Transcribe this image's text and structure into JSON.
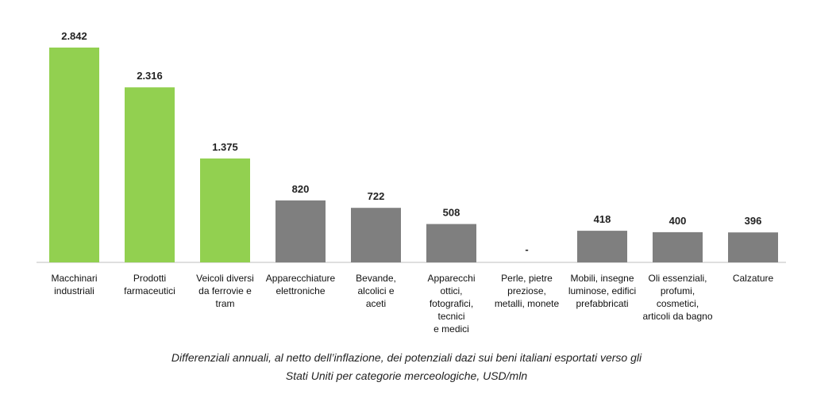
{
  "chart_data": {
    "type": "bar",
    "categories": [
      [
        "Macchinari",
        "industriali"
      ],
      [
        "Prodotti",
        "farmaceutici"
      ],
      [
        "Veicoli diversi",
        "da ferrovie e",
        "tram"
      ],
      [
        "Apparecchiature",
        "elettroniche"
      ],
      [
        "Bevande,",
        "alcolici e",
        "aceti"
      ],
      [
        "Apparecchi",
        "ottici,",
        "fotografici,",
        "tecnici",
        "e medici"
      ],
      [
        "Perle, pietre",
        "preziose,",
        "metalli, monete"
      ],
      [
        "Mobili, insegne",
        "luminose, edifici",
        "prefabbricati"
      ],
      [
        "Oli essenziali,",
        "profumi,",
        "cosmetici,",
        "articoli da bagno"
      ],
      [
        "Calzature"
      ]
    ],
    "values": [
      2842,
      2316,
      1375,
      820,
      722,
      508,
      0,
      418,
      400,
      396
    ],
    "value_labels": [
      "2.842",
      "2.316",
      "1.375",
      "820",
      "722",
      "508",
      "-",
      "418",
      "400",
      "396"
    ],
    "highlight": [
      true,
      true,
      true,
      false,
      false,
      false,
      false,
      false,
      false,
      false
    ],
    "colors": {
      "highlight": "#92d050",
      "default": "#7f7f7f",
      "axis": "#bfbfbf"
    },
    "ylim": [
      0,
      2842
    ],
    "grid": false,
    "legend": "none"
  },
  "caption": {
    "line1": "Differenziali annuali, al netto dell’inflazione, dei potenziali dazi sui beni italiani esportati verso gli",
    "line2": "Stati Uniti per categorie merceologiche, USD/mln"
  }
}
